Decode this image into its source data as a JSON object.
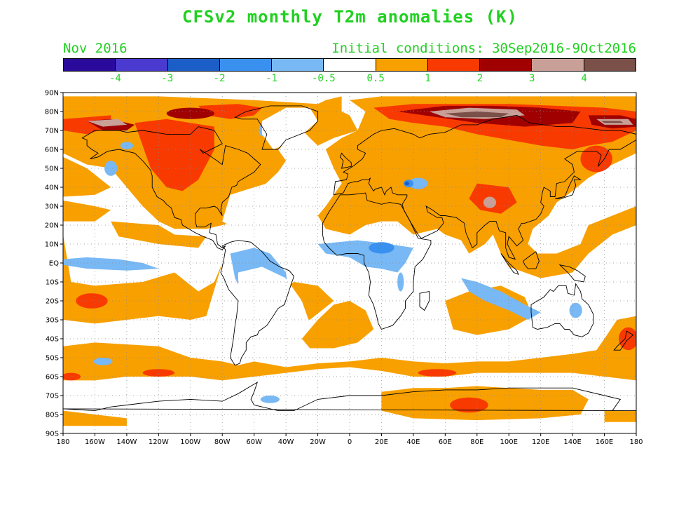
{
  "title": "CFSv2 monthly T2m anomalies (K)",
  "subtitle_left": "Nov 2016",
  "subtitle_right": "Initial conditions: 30Sep2016-9Oct2016",
  "colorbar": {
    "colors": [
      "#2a0a9a",
      "#4a3ad0",
      "#1c5ec8",
      "#3a90ee",
      "#78b8f4",
      "#ffffff",
      "#f8a000",
      "#f83a00",
      "#a00000",
      "#c8a098",
      "#7a5048"
    ],
    "labels": [
      "-4",
      "-3",
      "-2",
      "-1",
      "-0.5",
      "0.5",
      "1",
      "2",
      "3",
      "4"
    ]
  },
  "axes": {
    "lat_labels": [
      "90N",
      "80N",
      "70N",
      "60N",
      "50N",
      "40N",
      "30N",
      "20N",
      "10N",
      "EQ",
      "10S",
      "20S",
      "30S",
      "40S",
      "50S",
      "60S",
      "70S",
      "80S",
      "90S"
    ],
    "lon_labels": [
      "180",
      "160W",
      "140W",
      "120W",
      "100W",
      "80W",
      "60W",
      "40W",
      "20W",
      "0",
      "20E",
      "40E",
      "60E",
      "80E",
      "100E",
      "120E",
      "140E",
      "160E",
      "180"
    ]
  },
  "map_data": {
    "type": "filled-contour-map",
    "variable": "T2m anomaly (K)",
    "regions": [
      {
        "name": "Arctic Siberia coast",
        "level": 3
      },
      {
        "name": "Canada / Hudson Bay",
        "level": 2
      },
      {
        "name": "Tibetan Plateau",
        "level": 2
      },
      {
        "name": "Black Sea / Caspian",
        "level": -2
      },
      {
        "name": "Central Africa",
        "level": -1
      },
      {
        "name": "Central South America",
        "level": -1
      },
      {
        "name": "Equatorial Pacific",
        "level": -0.5
      },
      {
        "name": "Southern Indian Ocean",
        "level": -1
      },
      {
        "name": "East Antarctica",
        "level": 2
      }
    ]
  }
}
